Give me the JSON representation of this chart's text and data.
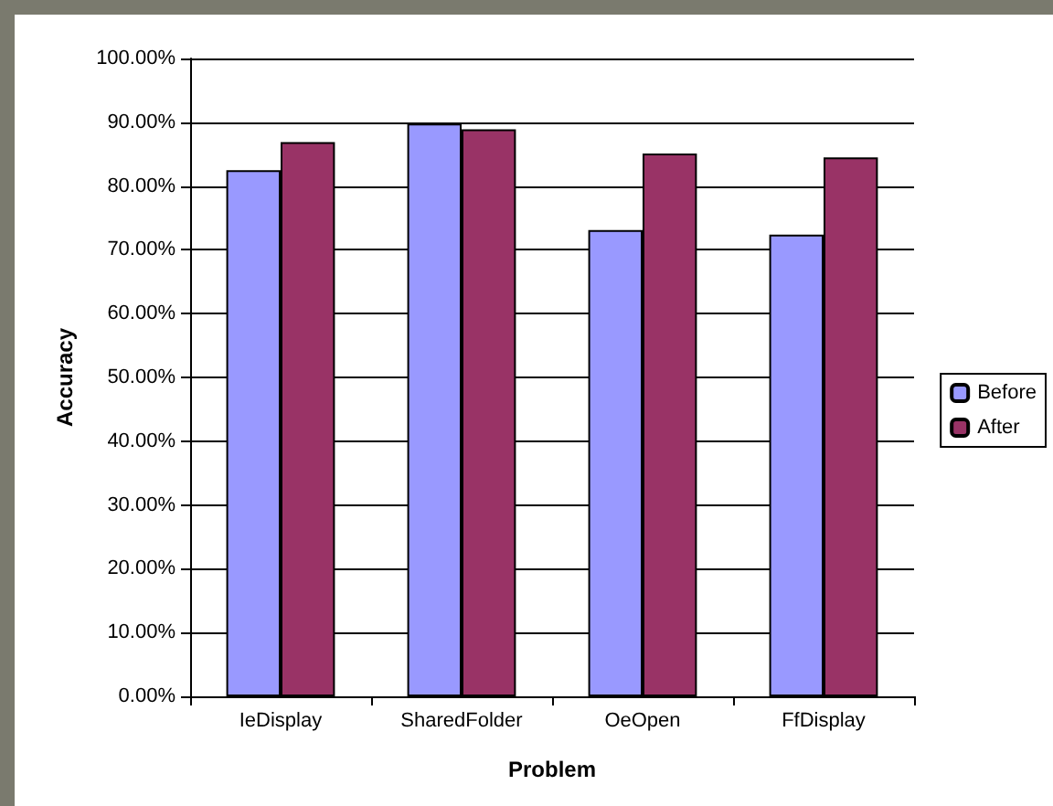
{
  "chart_data": {
    "type": "bar",
    "xlabel": "Problem",
    "ylabel": "Accuracy",
    "categories": [
      "IeDisplay",
      "SharedFolder",
      "OeOpen",
      "FfDisplay"
    ],
    "series": [
      {
        "name": "Before",
        "color": "#9999ff",
        "values": [
          82.5,
          89.8,
          73.1,
          72.4
        ]
      },
      {
        "name": "After",
        "color": "#993366",
        "values": [
          86.9,
          88.9,
          85.1,
          84.5
        ]
      }
    ],
    "ylim": [
      0,
      100
    ],
    "yticks": [
      {
        "value": 0,
        "label": "0.00%"
      },
      {
        "value": 10,
        "label": "10.00%"
      },
      {
        "value": 20,
        "label": "20.00%"
      },
      {
        "value": 30,
        "label": "30.00%"
      },
      {
        "value": 40,
        "label": "40.00%"
      },
      {
        "value": 50,
        "label": "50.00%"
      },
      {
        "value": 60,
        "label": "60.00%"
      },
      {
        "value": 70,
        "label": "70.00%"
      },
      {
        "value": 80,
        "label": "80.00%"
      },
      {
        "value": 90,
        "label": "90.00%"
      },
      {
        "value": 100,
        "label": "100.00%"
      }
    ],
    "grid": "y",
    "legend": "right"
  }
}
